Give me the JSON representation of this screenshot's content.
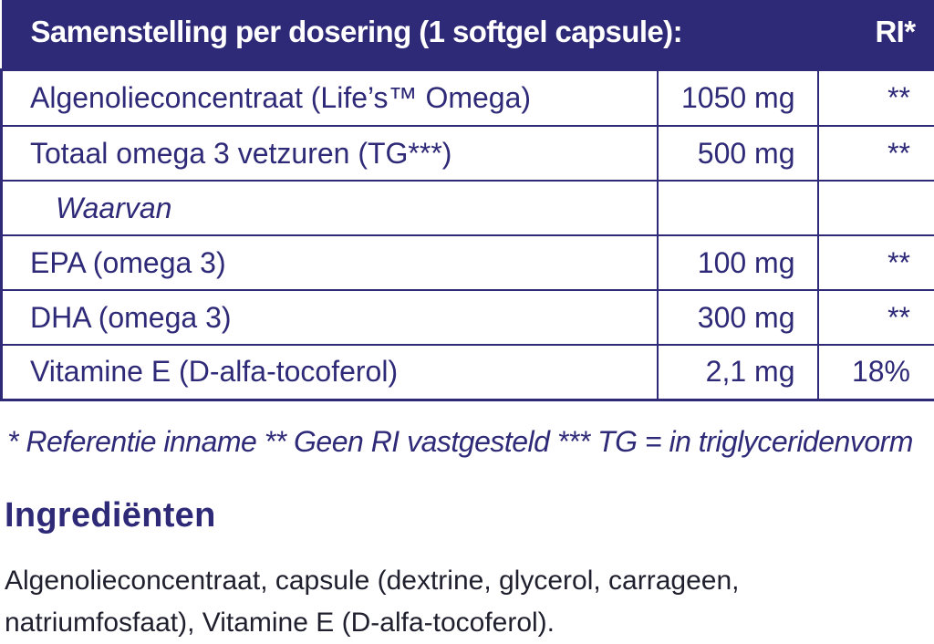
{
  "table": {
    "header": {
      "title": "Samenstelling per dosering (1 softgel capsule):",
      "ri": "RI*"
    },
    "rows": [
      {
        "name": "Algenolieconcentraat (Life’s™ Omega)",
        "amount": "1050 mg",
        "ri": "**"
      },
      {
        "name": "Totaal omega 3 vetzuren (TG***)",
        "amount": "500 mg",
        "ri": "**"
      },
      {
        "name": "Waarvan",
        "amount": "",
        "ri": ""
      },
      {
        "name": "EPA (omega 3)",
        "amount": "100 mg",
        "ri": "**"
      },
      {
        "name": "DHA (omega 3)",
        "amount": "300 mg",
        "ri": "**"
      },
      {
        "name": "Vitamine E (D-alfa-tocoferol)",
        "amount": "2,1 mg",
        "ri": "18%"
      }
    ]
  },
  "footnote": "* Referentie inname  ** Geen RI vastgesteld *** TG = in triglyceridenvorm",
  "ingredients": {
    "title": "Ingrediënten",
    "text": "Algenolieconcentraat, capsule (dextrine, glycerol, carrageen, natriumfosfaat), Vitamine E (D-alfa-tocoferol)."
  },
  "colors": {
    "brand": "#2e2a78",
    "body_text": "#1f1f2e"
  }
}
